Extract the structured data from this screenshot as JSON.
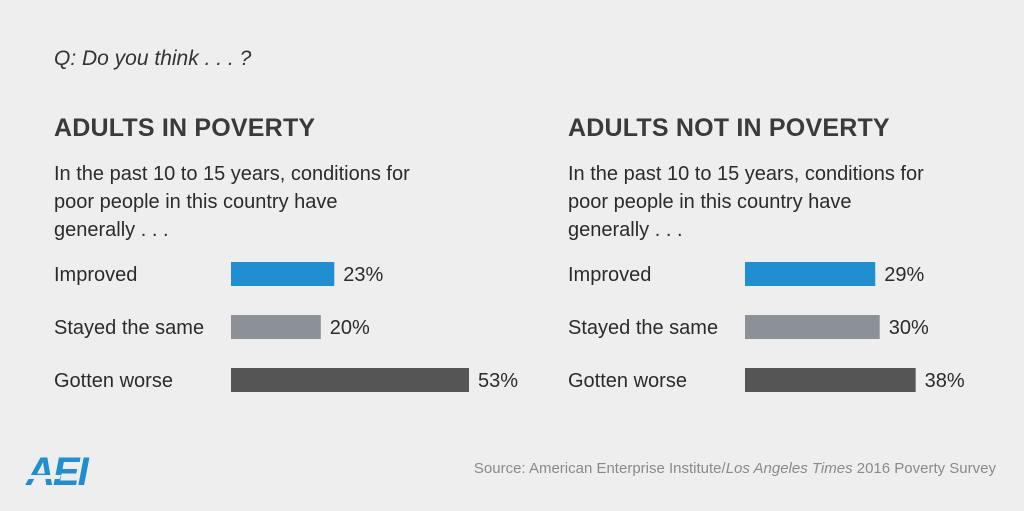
{
  "question": "Q: Do you think . . . ?",
  "source": {
    "prefix": "Source: American Enterprise Institute/",
    "italic": "Los Angeles Times",
    "suffix": " 2016 Poverty Survey"
  },
  "logo": {
    "text": "AEI",
    "color": "#1f8fd2"
  },
  "colors": {
    "improved": "#1f8fd2",
    "same": "#8c9198",
    "worse": "#555555"
  },
  "chart_data": [
    {
      "type": "bar",
      "orientation": "horizontal",
      "title": "ADULTS IN POVERTY",
      "subtitle": "In the past 10 to 15 years, conditions for poor people in this country have generally . . .",
      "categories": [
        "Improved",
        "Stayed the same",
        "Gotten worse"
      ],
      "values": [
        23,
        20,
        53
      ],
      "value_labels": [
        "23%",
        "20%",
        "53%"
      ],
      "unit": "%",
      "xlim": [
        0,
        53
      ]
    },
    {
      "type": "bar",
      "orientation": "horizontal",
      "title": "ADULTS NOT IN POVERTY",
      "subtitle": "In the past 10 to 15 years, conditions for poor people in this country have generally . . .",
      "categories": [
        "Improved",
        "Stayed the same",
        "Gotten worse"
      ],
      "values": [
        29,
        30,
        38
      ],
      "value_labels": [
        "29%",
        "30%",
        "38%"
      ],
      "unit": "%",
      "xlim": [
        0,
        53
      ]
    }
  ]
}
